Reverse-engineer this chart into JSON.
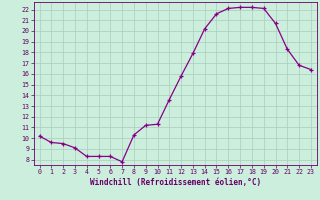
{
  "x": [
    0,
    1,
    2,
    3,
    4,
    5,
    6,
    7,
    8,
    9,
    10,
    11,
    12,
    13,
    14,
    15,
    16,
    17,
    18,
    19,
    20,
    21,
    22,
    23
  ],
  "y": [
    10.2,
    9.6,
    9.5,
    9.1,
    8.3,
    8.3,
    8.3,
    7.8,
    10.3,
    11.2,
    11.3,
    13.6,
    15.8,
    17.9,
    20.2,
    21.6,
    22.1,
    22.2,
    22.2,
    22.1,
    20.7,
    18.3,
    16.8,
    16.4
  ],
  "xlabel": "Windchill (Refroidissement éolien,°C)",
  "xlim": [
    -0.5,
    23.5
  ],
  "ylim": [
    7.5,
    22.7
  ],
  "yticks": [
    8,
    9,
    10,
    11,
    12,
    13,
    14,
    15,
    16,
    17,
    18,
    19,
    20,
    21,
    22
  ],
  "xticks": [
    0,
    1,
    2,
    3,
    4,
    5,
    6,
    7,
    8,
    9,
    10,
    11,
    12,
    13,
    14,
    15,
    16,
    17,
    18,
    19,
    20,
    21,
    22,
    23
  ],
  "line_color": "#880088",
  "marker": "+",
  "markersize": 3.5,
  "linewidth": 0.9,
  "bg_color": "#cceedd",
  "grid_color": "#aaccbb",
  "font_color": "#660066",
  "xlabel_fontsize": 5.5,
  "tick_fontsize": 4.8
}
